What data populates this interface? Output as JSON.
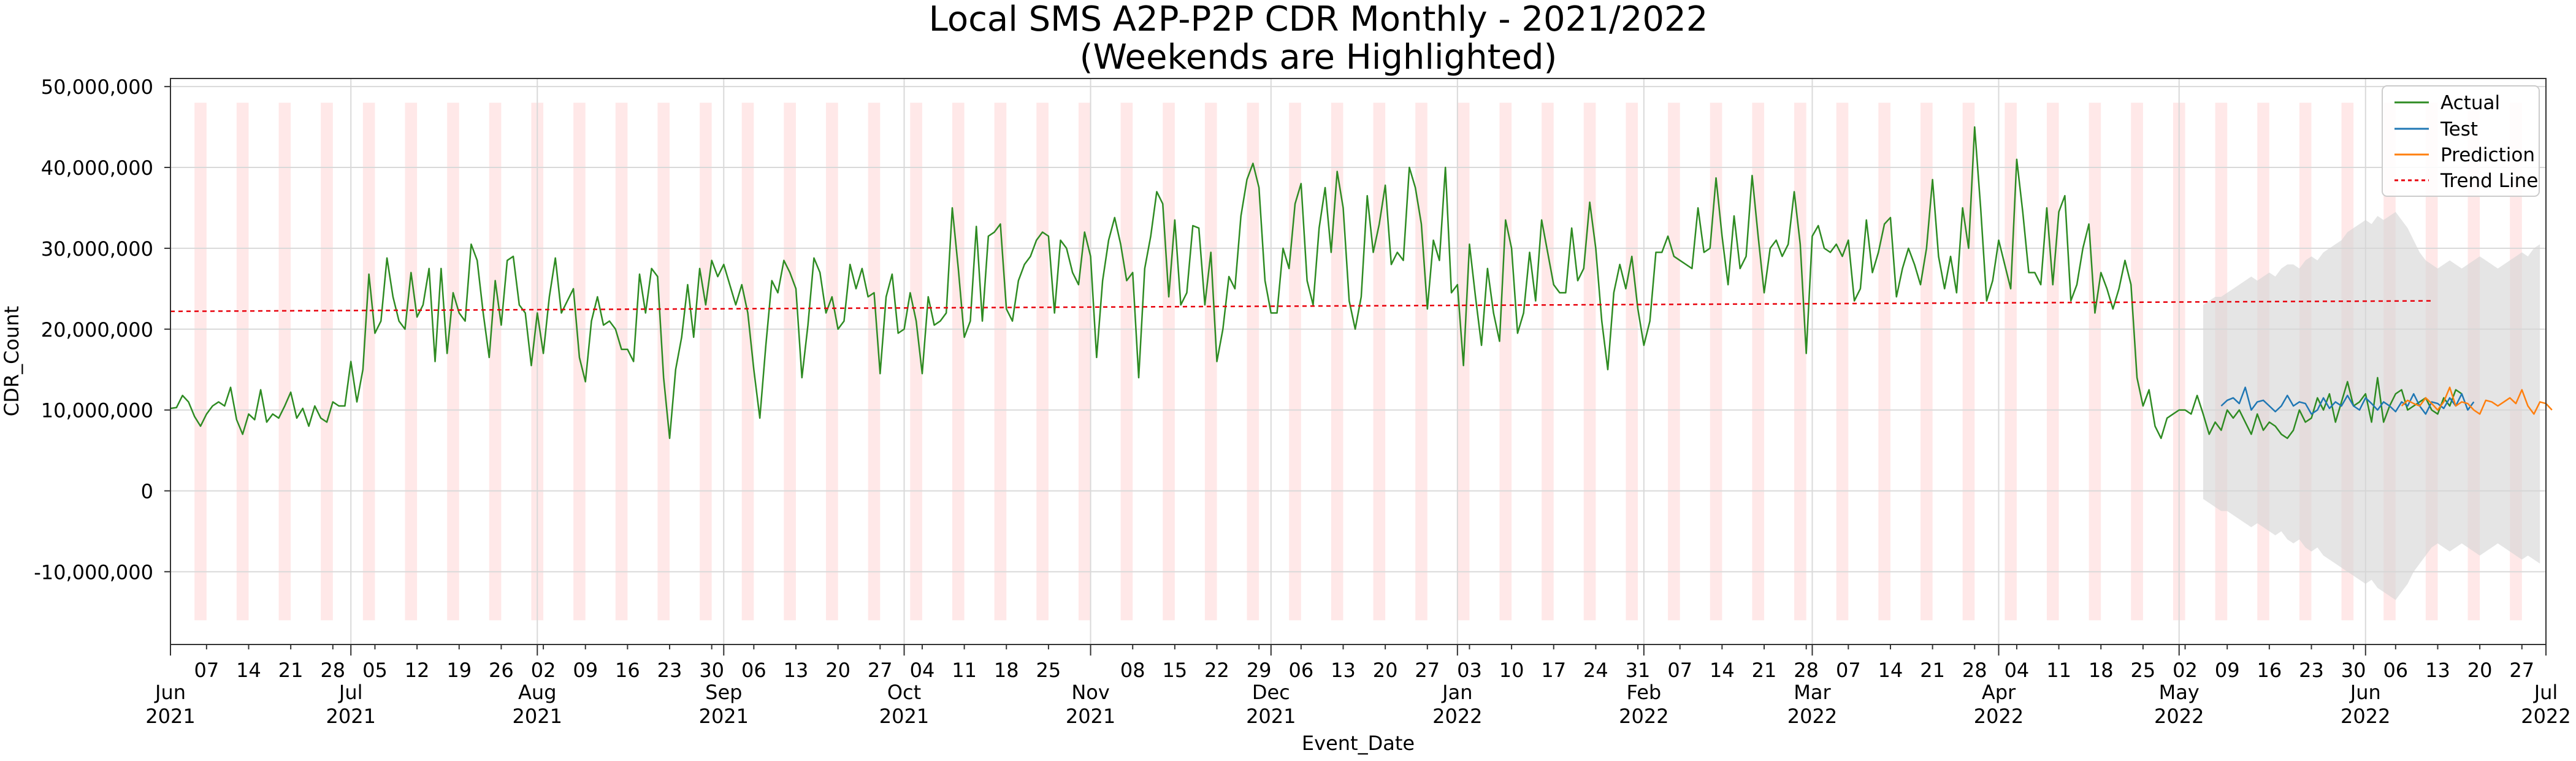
{
  "chart_data": {
    "type": "line",
    "title_line1": "Local SMS A2P-P2P CDR Monthly - 2021/2022",
    "title_line2": "(Weekends are Highlighted)",
    "xlabel": "Event_Date",
    "ylabel": "CDR_Count",
    "x_start": "2021-06-01",
    "x_end": "2022-07-01",
    "ylim": [
      -19000000,
      51000000
    ],
    "y_ticks": [
      {
        "value": 50000000,
        "label": "50,000,000"
      },
      {
        "value": 40000000,
        "label": "40,000,000"
      },
      {
        "value": 30000000,
        "label": "30,000,000"
      },
      {
        "value": 20000000,
        "label": "20,000,000"
      },
      {
        "value": 10000000,
        "label": "10,000,000"
      },
      {
        "value": 0,
        "label": "0"
      },
      {
        "value": -10000000,
        "label": "-10,000,000"
      }
    ],
    "month_ticks": [
      {
        "date": "2021-06-01",
        "label": "Jun",
        "year": "2021"
      },
      {
        "date": "2021-07-01",
        "label": "Jul",
        "year": "2021"
      },
      {
        "date": "2021-08-01",
        "label": "Aug",
        "year": "2021"
      },
      {
        "date": "2021-09-01",
        "label": "Sep",
        "year": "2021"
      },
      {
        "date": "2021-10-01",
        "label": "Oct",
        "year": "2021"
      },
      {
        "date": "2021-11-01",
        "label": "Nov",
        "year": "2021"
      },
      {
        "date": "2021-12-01",
        "label": "Dec",
        "year": "2021"
      },
      {
        "date": "2022-01-01",
        "label": "Jan",
        "year": "2022"
      },
      {
        "date": "2022-02-01",
        "label": "Feb",
        "year": "2022"
      },
      {
        "date": "2022-03-01",
        "label": "Mar",
        "year": "2022"
      },
      {
        "date": "2022-04-01",
        "label": "Apr",
        "year": "2022"
      },
      {
        "date": "2022-05-01",
        "label": "May",
        "year": "2022"
      },
      {
        "date": "2022-06-01",
        "label": "Jun",
        "year": "2022"
      },
      {
        "date": "2022-07-01",
        "label": "Jul",
        "year": "2022"
      }
    ],
    "day_ticks": [
      {
        "date": "2021-06-07",
        "label": "07"
      },
      {
        "date": "2021-06-14",
        "label": "14"
      },
      {
        "date": "2021-06-21",
        "label": "21"
      },
      {
        "date": "2021-06-28",
        "label": "28"
      },
      {
        "date": "2021-07-05",
        "label": "05"
      },
      {
        "date": "2021-07-12",
        "label": "12"
      },
      {
        "date": "2021-07-19",
        "label": "19"
      },
      {
        "date": "2021-07-26",
        "label": "26"
      },
      {
        "date": "2021-08-02",
        "label": "02"
      },
      {
        "date": "2021-08-09",
        "label": "09"
      },
      {
        "date": "2021-08-16",
        "label": "16"
      },
      {
        "date": "2021-08-23",
        "label": "23"
      },
      {
        "date": "2021-08-30",
        "label": "30"
      },
      {
        "date": "2021-09-06",
        "label": "06"
      },
      {
        "date": "2021-09-13",
        "label": "13"
      },
      {
        "date": "2021-09-20",
        "label": "20"
      },
      {
        "date": "2021-09-27",
        "label": "27"
      },
      {
        "date": "2021-10-04",
        "label": "04"
      },
      {
        "date": "2021-10-11",
        "label": "11"
      },
      {
        "date": "2021-10-18",
        "label": "18"
      },
      {
        "date": "2021-10-25",
        "label": "25"
      },
      {
        "date": "2021-11-08",
        "label": "08"
      },
      {
        "date": "2021-11-15",
        "label": "15"
      },
      {
        "date": "2021-11-22",
        "label": "22"
      },
      {
        "date": "2021-11-29",
        "label": "29"
      },
      {
        "date": "2021-12-06",
        "label": "06"
      },
      {
        "date": "2021-12-13",
        "label": "13"
      },
      {
        "date": "2021-12-20",
        "label": "20"
      },
      {
        "date": "2021-12-27",
        "label": "27"
      },
      {
        "date": "2022-01-03",
        "label": "03"
      },
      {
        "date": "2022-01-10",
        "label": "10"
      },
      {
        "date": "2022-01-17",
        "label": "17"
      },
      {
        "date": "2022-01-24",
        "label": "24"
      },
      {
        "date": "2022-01-31",
        "label": "31"
      },
      {
        "date": "2022-02-07",
        "label": "07"
      },
      {
        "date": "2022-02-14",
        "label": "14"
      },
      {
        "date": "2022-02-21",
        "label": "21"
      },
      {
        "date": "2022-02-28",
        "label": "28"
      },
      {
        "date": "2022-03-07",
        "label": "07"
      },
      {
        "date": "2022-03-14",
        "label": "14"
      },
      {
        "date": "2022-03-21",
        "label": "21"
      },
      {
        "date": "2022-03-28",
        "label": "28"
      },
      {
        "date": "2022-04-04",
        "label": "04"
      },
      {
        "date": "2022-04-11",
        "label": "11"
      },
      {
        "date": "2022-04-18",
        "label": "18"
      },
      {
        "date": "2022-04-25",
        "label": "25"
      },
      {
        "date": "2022-05-02",
        "label": "02"
      },
      {
        "date": "2022-05-09",
        "label": "09"
      },
      {
        "date": "2022-05-16",
        "label": "16"
      },
      {
        "date": "2022-05-23",
        "label": "23"
      },
      {
        "date": "2022-05-30",
        "label": "30"
      },
      {
        "date": "2022-06-06",
        "label": "06"
      },
      {
        "date": "2022-06-13",
        "label": "13"
      },
      {
        "date": "2022-06-20",
        "label": "20"
      },
      {
        "date": "2022-06-27",
        "label": "27"
      }
    ],
    "weekend_highlight": {
      "start": "2021-06-05",
      "end": "2022-06-26",
      "ymin": -16000000,
      "ymax": 48000000,
      "color": "#ffe8e8"
    },
    "trend_line": {
      "x": [
        "2021-06-01",
        "2022-06-12"
      ],
      "y": [
        22200000,
        23500000
      ],
      "color": "#e8000b"
    },
    "confidence_band": {
      "start": "2022-05-05",
      "end": "2022-06-30",
      "color": "#d3d3d3",
      "upper": [
        23000000,
        23500000,
        24000000,
        24000000,
        24500000,
        25000000,
        25500000,
        26000000,
        26500000,
        26000000,
        26500000,
        27000000,
        26500000,
        27500000,
        28000000,
        28000000,
        27500000,
        28500000,
        29000000,
        28500000,
        29500000,
        30000000,
        30500000,
        31000000,
        32000000,
        32500000,
        33000000,
        33500000,
        33000000,
        34000000,
        33500000,
        34000000,
        34500000,
        33500000,
        32500000,
        31000000,
        29500000,
        28500000,
        28000000,
        27500000,
        28000000,
        28500000,
        28000000,
        27500000,
        28000000,
        28500000,
        29000000,
        28500000,
        28000000,
        27500000,
        28000000,
        28500000,
        29000000,
        29500000,
        29000000,
        30000000,
        30500000
      ],
      "lower": [
        -1000000,
        -1500000,
        -2000000,
        -2500000,
        -2500000,
        -3000000,
        -3500000,
        -4000000,
        -4500000,
        -4000000,
        -4500000,
        -5000000,
        -5500000,
        -5000000,
        -6000000,
        -6500000,
        -6000000,
        -7000000,
        -7500000,
        -7000000,
        -8000000,
        -8500000,
        -9000000,
        -9500000,
        -10000000,
        -10500000,
        -11000000,
        -11500000,
        -11000000,
        -12000000,
        -12500000,
        -13000000,
        -13500000,
        -12500000,
        -11500000,
        -10000000,
        -9000000,
        -8000000,
        -7000000,
        -6500000,
        -7000000,
        -7500000,
        -7000000,
        -6500000,
        -7000000,
        -7500000,
        -8000000,
        -7500000,
        -7000000,
        -6500000,
        -7000000,
        -7500000,
        -8000000,
        -8500000,
        -8000000,
        -8500000,
        -9000000
      ]
    },
    "series": [
      {
        "name": "Actual",
        "color": "#2e8b22",
        "start": "2021-06-01",
        "values": [
          10200000,
          10300000,
          11800000,
          11000000,
          9200000,
          8000000,
          9500000,
          10500000,
          11000000,
          10500000,
          12800000,
          8800000,
          7000000,
          9500000,
          8800000,
          12500000,
          8500000,
          9500000,
          9000000,
          10500000,
          12200000,
          9000000,
          10200000,
          8000000,
          10500000,
          9000000,
          8500000,
          11000000,
          10500000,
          10500000,
          16000000,
          11000000,
          15000000,
          26800000,
          19500000,
          21000000,
          28800000,
          24000000,
          21000000,
          20000000,
          27000000,
          21500000,
          23000000,
          27500000,
          16000000,
          27500000,
          17000000,
          24500000,
          22000000,
          21000000,
          30500000,
          28500000,
          22000000,
          16500000,
          26000000,
          20500000,
          28500000,
          29000000,
          23000000,
          22000000,
          15500000,
          22000000,
          17000000,
          24000000,
          28800000,
          22000000,
          23500000,
          25000000,
          16500000,
          13500000,
          21000000,
          24000000,
          20500000,
          21000000,
          20000000,
          17500000,
          17500000,
          16000000,
          26800000,
          22000000,
          27500000,
          26500000,
          14000000,
          6500000,
          15000000,
          19000000,
          25500000,
          19000000,
          27500000,
          23000000,
          28500000,
          26500000,
          28000000,
          25500000,
          23000000,
          25500000,
          22000000,
          15000000,
          9000000,
          18000000,
          26000000,
          24500000,
          28500000,
          27000000,
          25000000,
          14000000,
          20500000,
          28800000,
          27000000,
          22000000,
          24000000,
          20000000,
          21000000,
          28000000,
          25000000,
          27500000,
          24000000,
          24500000,
          14500000,
          24000000,
          26800000,
          19500000,
          20000000,
          24500000,
          21000000,
          14500000,
          24000000,
          20500000,
          21000000,
          22000000,
          35000000,
          27500000,
          19000000,
          21000000,
          32700000,
          21000000,
          31500000,
          32000000,
          33000000,
          22500000,
          21000000,
          26000000,
          28000000,
          29000000,
          31000000,
          32000000,
          31500000,
          22000000,
          31000000,
          30000000,
          27000000,
          25500000,
          32000000,
          29000000,
          16500000,
          26000000,
          31000000,
          33800000,
          30500000,
          26000000,
          27000000,
          14000000,
          27500000,
          31500000,
          37000000,
          35500000,
          24000000,
          33500000,
          23000000,
          24500000,
          32800000,
          32500000,
          23000000,
          29500000,
          16000000,
          20000000,
          26500000,
          25000000,
          34000000,
          38500000,
          40500000,
          37500000,
          26000000,
          22000000,
          22000000,
          30000000,
          27500000,
          35500000,
          38000000,
          26000000,
          23000000,
          32500000,
          37500000,
          29500000,
          39500000,
          35000000,
          23500000,
          20000000,
          24000000,
          36500000,
          29500000,
          33000000,
          37800000,
          28000000,
          29500000,
          28500000,
          40000000,
          37500000,
          33000000,
          22500000,
          31000000,
          28500000,
          40000000,
          24500000,
          25500000,
          15500000,
          30500000,
          24000000,
          18000000,
          27500000,
          22000000,
          18500000,
          33500000,
          30000000,
          19500000,
          22000000,
          29500000,
          23500000,
          33500000,
          29500000,
          25500000,
          24500000,
          24500000,
          32500000,
          26000000,
          27500000,
          35700000,
          30000000,
          21000000,
          15000000,
          24500000,
          28000000,
          25000000,
          29000000,
          22500000,
          18000000,
          21000000,
          29500000,
          29500000,
          31500000,
          29000000,
          28500000,
          28000000,
          27500000,
          35000000,
          29500000,
          30000000,
          38700000,
          31500000,
          25500000,
          34000000,
          27500000,
          29000000,
          39000000,
          31500000,
          24500000,
          30000000,
          31000000,
          29000000,
          30500000,
          37000000,
          30500000,
          17000000,
          31500000,
          32800000,
          30000000,
          29500000,
          30500000,
          29000000,
          31000000,
          23500000,
          25000000,
          33500000,
          27000000,
          29500000,
          33000000,
          33800000,
          24000000,
          27500000,
          30000000,
          28000000,
          25500000,
          30000000,
          38500000,
          29000000,
          25000000,
          29000000,
          24500000,
          35000000,
          30000000,
          45000000,
          35000000,
          23500000,
          26000000,
          31000000,
          28000000,
          25000000,
          41000000,
          34500000,
          27000000,
          27000000,
          25500000,
          35000000,
          25500000,
          34500000,
          36500000,
          23500000,
          25500000,
          30000000,
          33000000,
          22000000,
          27000000,
          25000000,
          22500000,
          25000000,
          28500000,
          25500000,
          14000000,
          10500000,
          12500000,
          8000000,
          6500000,
          9000000,
          9500000,
          10000000,
          10000000,
          9500000,
          11800000,
          9500000,
          7000000,
          8500000,
          7500000,
          10000000,
          9000000,
          10000000,
          8500000,
          7000000,
          9500000,
          7500000,
          8500000,
          8000000,
          7000000,
          6500000,
          7500000,
          10000000,
          8500000,
          9000000,
          11500000,
          10000000,
          12000000,
          8500000,
          11000000,
          13500000,
          10500000,
          11000000,
          12000000,
          8500000,
          14000000,
          8500000,
          10500000,
          12000000,
          12500000,
          10000000,
          10500000,
          11000000,
          11500000,
          10000000,
          9500000,
          11500000,
          10500000,
          12500000,
          12000000
        ]
      },
      {
        "name": "Test",
        "color": "#1f77b4",
        "start": "2022-05-08",
        "values": [
          10500000,
          11200000,
          11500000,
          10800000,
          12800000,
          10000000,
          11000000,
          11200000,
          10500000,
          9800000,
          10500000,
          11800000,
          10500000,
          11000000,
          10800000,
          9500000,
          10000000,
          11500000,
          10200000,
          11000000,
          10500000,
          11800000,
          10500000,
          10000000,
          11500000,
          10800000,
          10000000,
          11000000,
          10500000,
          9800000,
          11000000,
          10500000,
          12000000,
          10500000,
          9500000,
          11000000,
          10800000,
          10200000,
          11500000,
          10500000,
          12000000,
          10000000,
          11000000
        ]
      },
      {
        "name": "Prediction",
        "color": "#ff7f0e",
        "start": "2022-06-07",
        "values": [
          10500000,
          11200000,
          10800000,
          10500000,
          11500000,
          10800000,
          10000000,
          11000000,
          12800000,
          10500000,
          11000000,
          10800000,
          10000000,
          9500000,
          11200000,
          11000000,
          10500000,
          11000000,
          11500000,
          10800000,
          12500000,
          10500000,
          9500000,
          11000000,
          10800000,
          10000000
        ]
      },
      {
        "name": "Trend Line",
        "color": "#e8000b",
        "dashed": true
      }
    ],
    "legend_position": "top-right",
    "grid": true
  }
}
